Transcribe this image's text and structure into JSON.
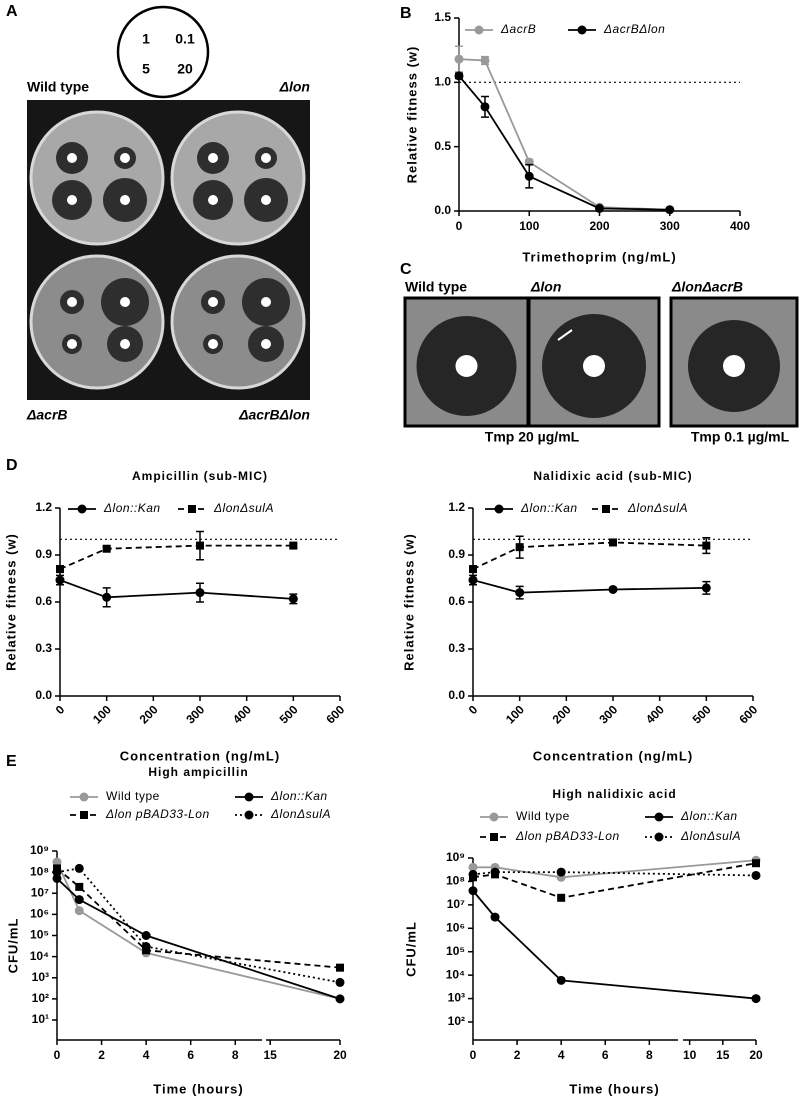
{
  "panel_labels": [
    "A",
    "B",
    "C",
    "D",
    "E"
  ],
  "panel_a": {
    "disk_key": [
      "1",
      "0.1",
      "5",
      "20"
    ],
    "strains": [
      "Wild type",
      "Δlon",
      "ΔacrB",
      "ΔacrBΔlon"
    ]
  },
  "panel_c": {
    "strains": [
      "Wild type",
      "Δlon",
      "ΔlonΔacrB"
    ],
    "conditions": [
      "Tmp 20 µg/mL",
      "Tmp 0.1 µg/mL"
    ]
  },
  "chart_data": [
    {
      "type": "line",
      "xlabel": "Trimethoprim (ng/mL)",
      "ylabel": "Relative fitness (w)",
      "x": [
        0,
        37,
        100,
        200,
        300
      ],
      "xlim": [
        0,
        400
      ],
      "xticks": [
        0,
        100,
        200,
        300,
        400
      ],
      "ylim": [
        0,
        1.5
      ],
      "yticks": [
        {
          "value": 0,
          "label": "0.0"
        },
        0.5,
        {
          "value": 1,
          "label": "1.0"
        },
        1.5
      ],
      "hline": 1,
      "series": [
        {
          "name": "ΔacrB",
          "color": "#999999",
          "line": "solid",
          "marker": "circle",
          "values": [
            1.18,
            1.17,
            0.38,
            0.03,
            0.01
          ],
          "errors": [
            0.1,
            0.03,
            0.02,
            0.01,
            null
          ]
        },
        {
          "name": "ΔacrBΔlon",
          "color": "#000000",
          "line": "solid",
          "marker": "circle",
          "values": [
            1.05,
            0.81,
            0.27,
            0.02,
            0.01
          ],
          "errors": [
            0.02,
            0.08,
            0.09,
            null,
            null
          ]
        }
      ]
    },
    {
      "type": "line",
      "title": "Ampicillin (sub-MIC)",
      "xlabel": "Concentration (ng/mL)",
      "ylabel": "Relative fitness (w)",
      "x": [
        0,
        100,
        300,
        500
      ],
      "xlim": [
        0,
        600
      ],
      "xticks": [
        0,
        100,
        200,
        300,
        400,
        500,
        600
      ],
      "ylim": [
        0,
        1.2
      ],
      "yticks": [
        {
          "value": 0,
          "label": "0.0"
        },
        0.3,
        0.6,
        0.9,
        1.2
      ],
      "hline": 1,
      "series": [
        {
          "name": "Δlon::Kan",
          "color": "#000000",
          "line": "solid",
          "marker": "circle",
          "values": [
            0.74,
            0.63,
            0.66,
            0.62
          ],
          "errors": [
            0.03,
            0.06,
            0.06,
            0.03
          ]
        },
        {
          "name": "ΔlonΔsulA",
          "color": "#000000",
          "line": "dashed",
          "marker": "square",
          "values": [
            0.81,
            0.94,
            0.96,
            0.96
          ],
          "errors": [
            0.02,
            0.01,
            0.09,
            0.01
          ]
        }
      ]
    },
    {
      "type": "line",
      "title": "Nalidixic acid (sub-MIC)",
      "xlabel": "Concentration (ng/mL)",
      "ylabel": "Relative fitness (w)",
      "x": [
        0,
        100,
        300,
        500
      ],
      "xlim": [
        0,
        600
      ],
      "xticks": [
        0,
        100,
        200,
        300,
        400,
        500,
        600
      ],
      "ylim": [
        0,
        1.2
      ],
      "yticks": [
        {
          "value": 0,
          "label": "0.0"
        },
        0.3,
        0.6,
        0.9,
        1.2
      ],
      "hline": 1,
      "series": [
        {
          "name": "Δlon::Kan",
          "color": "#000000",
          "line": "solid",
          "marker": "circle",
          "values": [
            0.74,
            0.66,
            0.68,
            0.69
          ],
          "errors": [
            0.03,
            0.04,
            0.01,
            0.04
          ]
        },
        {
          "name": "ΔlonΔsulA",
          "color": "#000000",
          "line": "dashed",
          "marker": "square",
          "values": [
            0.81,
            0.95,
            0.98,
            0.96
          ],
          "errors": [
            0.02,
            0.07,
            0.02,
            0.05
          ]
        }
      ]
    },
    {
      "type": "line",
      "title": "High ampicillin",
      "xlabel": "Time (hours)",
      "ylabel": "CFU/mL",
      "ylog": true,
      "x": [
        0,
        1,
        4,
        20
      ],
      "xsegments": [
        {
          "xlim": [
            0,
            9.2
          ],
          "xticks": [
            0,
            2,
            4,
            6,
            8
          ]
        },
        {
          "xlim": [
            14.7,
            20
          ],
          "xticks": [
            15,
            20
          ]
        }
      ],
      "ylim": [
        10.0,
        1000000000.0
      ],
      "yticks": [
        {
          "value": 10.0,
          "label": "10¹"
        },
        {
          "value": 100.0,
          "label": "10²"
        },
        {
          "value": 1000.0,
          "label": "10³"
        },
        {
          "value": 10000.0,
          "label": "10⁴"
        },
        {
          "value": 100000.0,
          "label": "10⁵"
        },
        {
          "value": 1000000.0,
          "label": "10⁶"
        },
        {
          "value": 10000000.0,
          "label": "10⁷"
        },
        {
          "value": 100000000.0,
          "label": "10⁸"
        },
        {
          "value": 1000000000.0,
          "label": "10⁹"
        }
      ],
      "series": [
        {
          "name": "Wild type",
          "color": "#999999",
          "line": "solid",
          "marker": "circle",
          "values": [
            300000000.0,
            1500000.0,
            15000.0,
            100.0
          ]
        },
        {
          "name": "Δlon pBAD33-Lon",
          "color": "#000000",
          "line": "dashed",
          "marker": "square",
          "values": [
            150000000.0,
            20000000.0,
            20000.0,
            3000.0
          ]
        },
        {
          "name": "Δlon::Kan",
          "color": "#000000",
          "line": "solid",
          "marker": "circle",
          "values": [
            50000000.0,
            5000000.0,
            100000.0,
            100.0
          ]
        },
        {
          "name": "ΔlonΔsulA",
          "color": "#000000",
          "line": "dotted",
          "marker": "circle",
          "values": [
            100000000.0,
            150000000.0,
            30000.0,
            600.0
          ]
        }
      ]
    },
    {
      "type": "line",
      "title": "High nalidixic acid",
      "xlabel": "Time (hours)",
      "ylabel": "CFU/mL",
      "ylog": true,
      "x": [
        0,
        1,
        4,
        20
      ],
      "xsegments": [
        {
          "xlim": [
            0,
            9.3
          ],
          "xticks": [
            0,
            2,
            4,
            6,
            8
          ]
        },
        {
          "xlim": [
            9,
            20
          ],
          "xticks": [
            10,
            15,
            20
          ]
        }
      ],
      "ylim": [
        100.0,
        1000000000.0
      ],
      "yticks": [
        {
          "value": 100.0,
          "label": "10²"
        },
        {
          "value": 1000.0,
          "label": "10³"
        },
        {
          "value": 10000.0,
          "label": "10⁴"
        },
        {
          "value": 100000.0,
          "label": "10⁵"
        },
        {
          "value": 1000000.0,
          "label": "10⁶"
        },
        {
          "value": 10000000.0,
          "label": "10⁷"
        },
        {
          "value": 100000000.0,
          "label": "10⁸"
        },
        {
          "value": 1000000000.0,
          "label": "10⁹"
        }
      ],
      "series": [
        {
          "name": "Wild type",
          "color": "#999999",
          "line": "solid",
          "marker": "circle",
          "values": [
            400000000.0,
            400000000.0,
            150000000.0,
            800000000.0
          ]
        },
        {
          "name": "Δlon pBAD33-Lon",
          "color": "#000000",
          "line": "dashed",
          "marker": "square",
          "values": [
            150000000.0,
            200000000.0,
            20000000.0,
            600000000.0
          ]
        },
        {
          "name": "Δlon::Kan",
          "color": "#000000",
          "line": "solid",
          "marker": "circle",
          "values": [
            40000000.0,
            3000000.0,
            6000.0,
            1000.0
          ]
        },
        {
          "name": "ΔlonΔsulA",
          "color": "#000000",
          "line": "dotted",
          "marker": "circle",
          "values": [
            200000000.0,
            250000000.0,
            250000000.0,
            180000000.0
          ]
        }
      ]
    }
  ]
}
